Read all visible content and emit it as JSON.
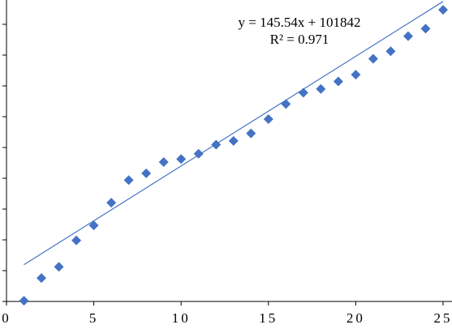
{
  "chart_data": {
    "type": "scatter",
    "title": "",
    "xlabel": "",
    "ylabel": "",
    "xlim": [
      0,
      25
    ],
    "ylim": [
      101500,
      105500
    ],
    "x_ticks": [
      0,
      5,
      10,
      15,
      20,
      25
    ],
    "x_tick_labels": [
      "0",
      "5",
      "10",
      "15",
      "20",
      "25"
    ],
    "y_tick_labels_visible": false,
    "y_tick_count": 10,
    "grid": false,
    "marker": "diamond",
    "colors": {
      "points": "#4472C4",
      "trendline": "#4472C4",
      "axis": "#000000"
    },
    "series": [
      {
        "x": [
          1,
          2,
          3,
          4,
          5,
          6,
          7,
          8,
          9,
          10,
          11,
          12,
          13,
          14,
          15,
          16,
          17,
          18,
          19,
          20,
          21,
          22,
          23,
          24,
          25
        ],
        "y": [
          101510,
          101810,
          101960,
          102310,
          102510,
          102810,
          103110,
          103200,
          103350,
          103390,
          103460,
          103580,
          103630,
          103730,
          103920,
          104120,
          104270,
          104320,
          104420,
          104510,
          104720,
          104820,
          105020,
          105120,
          105370
        ]
      }
    ],
    "trendline": {
      "type": "linear",
      "slope": 145.54,
      "intercept": 101842,
      "equation": "y = 145.54x + 101842",
      "r_squared": "R² = 0.971"
    }
  }
}
